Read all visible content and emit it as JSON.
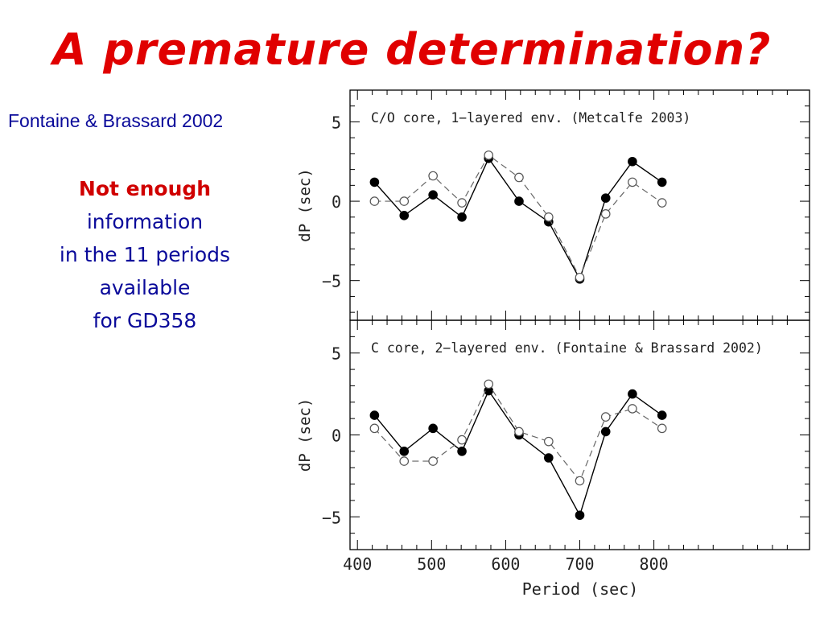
{
  "slide": {
    "title": "A premature determination?",
    "citation": "Fontaine & Brassard 2002",
    "note": {
      "emphasis": "Not enough",
      "lines": [
        "information",
        "in the 11 periods",
        "available",
        "for GD358"
      ]
    },
    "colors": {
      "title": "#e00000",
      "body_text": "#0a0a9a",
      "emphasis": "#d00000"
    }
  },
  "chart_data": [
    {
      "type": "line",
      "title": "C/O core, 1−layered env. (Metcalfe 2003)",
      "xlabel": "",
      "ylabel": "dP (sec)",
      "xlim": [
        390,
        1010
      ],
      "ylim": [
        -7.5,
        7
      ],
      "ytick_labels": [
        "5",
        "0",
        "−5"
      ],
      "grid": false,
      "series": [
        {
          "marker": "filled-circle",
          "line": "solid",
          "x": [
            423,
            463,
            502,
            541,
            577,
            618,
            658,
            700,
            735,
            771,
            811
          ],
          "y": [
            1.2,
            -0.9,
            0.4,
            -1.0,
            2.7,
            0.0,
            -1.3,
            -4.9,
            0.2,
            2.5,
            1.2
          ]
        },
        {
          "marker": "open-circle",
          "line": "dashed",
          "x": [
            423,
            463,
            502,
            541,
            577,
            618,
            658,
            700,
            735,
            771,
            811
          ],
          "y": [
            0.0,
            0.0,
            1.6,
            -0.1,
            2.9,
            1.5,
            -1.0,
            -4.8,
            -0.8,
            1.2,
            -0.1
          ]
        }
      ]
    },
    {
      "type": "line",
      "title": "C core, 2−layered env. (Fontaine & Brassard 2002)",
      "xlabel": "Period (sec)",
      "ylabel": "dP (sec)",
      "xlim": [
        390,
        1010
      ],
      "ylim": [
        -7,
        7
      ],
      "xtick_labels": [
        "400",
        "500",
        "600",
        "700",
        "800"
      ],
      "ytick_labels": [
        "5",
        "0",
        "−5"
      ],
      "grid": false,
      "series": [
        {
          "marker": "filled-circle",
          "line": "solid",
          "x": [
            423,
            463,
            502,
            541,
            577,
            618,
            658,
            700,
            735,
            771,
            811
          ],
          "y": [
            1.2,
            -1.0,
            0.4,
            -1.0,
            2.7,
            0.0,
            -1.4,
            -4.9,
            0.2,
            2.5,
            1.2
          ]
        },
        {
          "marker": "open-circle",
          "line": "dashed",
          "x": [
            423,
            463,
            502,
            541,
            577,
            618,
            658,
            700,
            735,
            771,
            811
          ],
          "y": [
            0.4,
            -1.6,
            -1.6,
            -0.3,
            3.1,
            0.2,
            -0.4,
            -2.8,
            1.1,
            1.6,
            0.4
          ]
        }
      ]
    }
  ]
}
